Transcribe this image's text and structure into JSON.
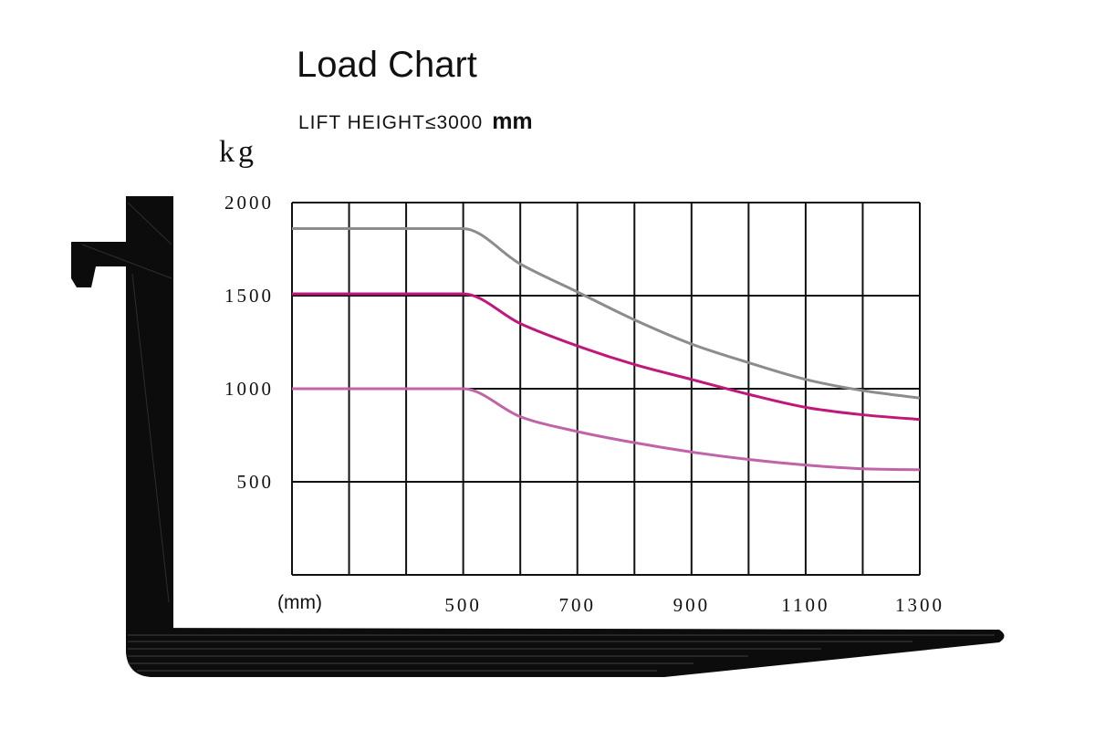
{
  "title": "Load Chart",
  "subtitle": {
    "prefix": "LIFT HEIGHT≤3000",
    "unit": "mm"
  },
  "chart_data": {
    "type": "line",
    "title": "Load Chart",
    "subtitle": "LIFT HEIGHT≤3000 mm",
    "ylabel": "kg",
    "xlabel": "(mm)",
    "xlim": [
      200,
      1300
    ],
    "ylim": [
      0,
      2000
    ],
    "x_ticks": [
      500,
      700,
      900,
      1100,
      1300
    ],
    "y_ticks": [
      500,
      1000,
      1500,
      2000
    ],
    "grid": true,
    "series": [
      {
        "color": "#8c8c8c",
        "x": [
          200,
          300,
          400,
          500,
          600,
          700,
          800,
          900,
          1000,
          1100,
          1200,
          1300
        ],
        "y": [
          1860,
          1860,
          1860,
          1860,
          1670,
          1520,
          1370,
          1240,
          1140,
          1050,
          990,
          950
        ]
      },
      {
        "color": "#c0187a",
        "x": [
          200,
          300,
          400,
          500,
          600,
          700,
          800,
          900,
          1000,
          1100,
          1200,
          1300
        ],
        "y": [
          1510,
          1510,
          1510,
          1510,
          1350,
          1230,
          1130,
          1050,
          970,
          900,
          860,
          835
        ]
      },
      {
        "color": "#c064a8",
        "x": [
          200,
          300,
          400,
          500,
          600,
          700,
          800,
          900,
          1000,
          1100,
          1200,
          1300
        ],
        "y": [
          1000,
          1000,
          1000,
          1000,
          850,
          770,
          710,
          660,
          620,
          590,
          570,
          565
        ]
      }
    ]
  }
}
